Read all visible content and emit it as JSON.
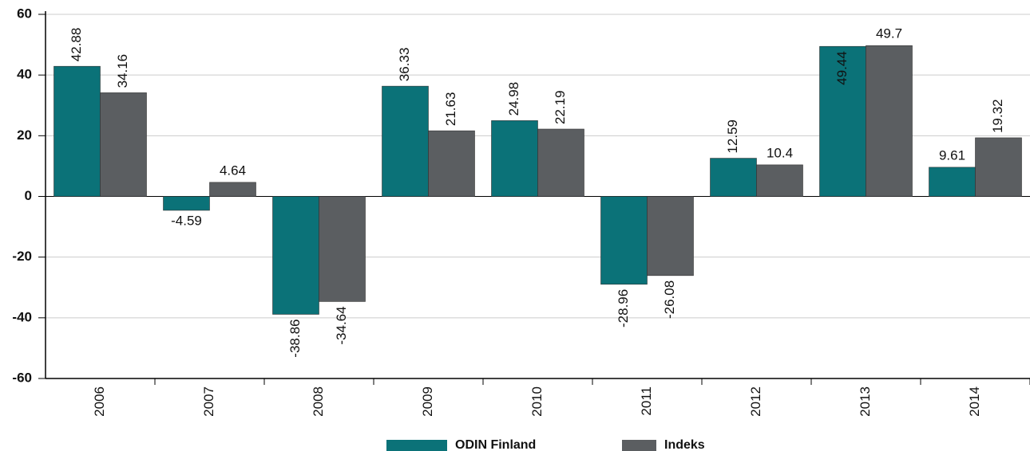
{
  "chart_data": {
    "type": "bar",
    "categories": [
      "2006",
      "2007",
      "2008",
      "2009",
      "2010",
      "2011",
      "2012",
      "2013",
      "2014"
    ],
    "series": [
      {
        "name": "ODIN Finland",
        "color": "#0b7278",
        "values": [
          42.88,
          -4.59,
          -38.86,
          36.33,
          24.98,
          -28.96,
          12.59,
          49.44,
          9.61
        ]
      },
      {
        "name": "Indeks",
        "color": "#5b5e61",
        "values": [
          34.16,
          4.64,
          -34.64,
          21.63,
          22.19,
          -26.08,
          10.4,
          49.7,
          19.32
        ]
      }
    ],
    "ylim": [
      -60,
      60
    ],
    "yticks": [
      -60,
      -40,
      -20,
      0,
      20,
      40,
      60
    ],
    "grid": true
  }
}
